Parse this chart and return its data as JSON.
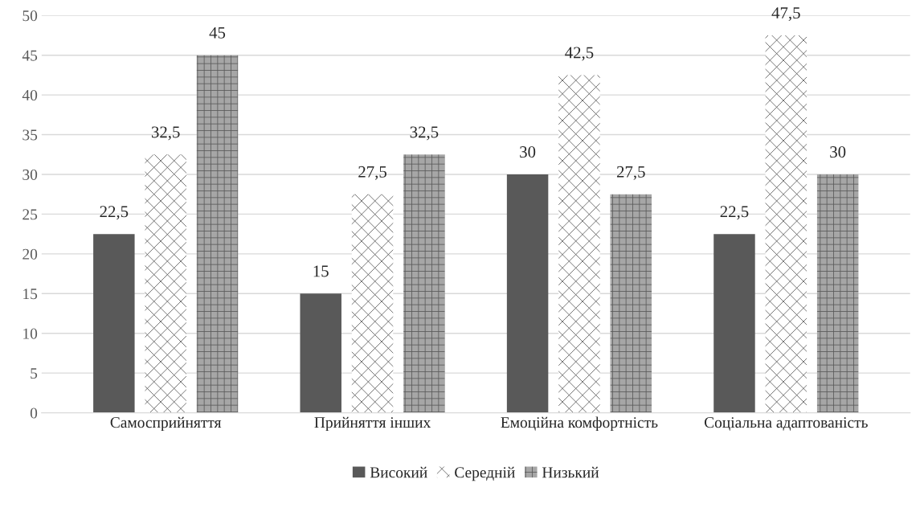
{
  "chart_data": {
    "type": "bar",
    "categories": [
      "Самосприйняття",
      "Прийняття інших",
      "Емоційна комфортність",
      "Соціальна адаптованість"
    ],
    "series": [
      {
        "name": "Високий",
        "color": "#595959",
        "values": [
          22.5,
          15,
          30,
          22.5
        ],
        "value_labels": [
          "22,5",
          "15",
          "30",
          "22,5"
        ]
      },
      {
        "name": "Середній",
        "color": "#ffffff",
        "values": [
          32.5,
          27.5,
          42.5,
          47.5
        ],
        "value_labels": [
          "32,5",
          "27,5",
          "42,5",
          "47,5"
        ]
      },
      {
        "name": "Низький",
        "color": "#a6a6a6",
        "values": [
          45,
          32.5,
          27.5,
          30
        ],
        "value_labels": [
          "45",
          "32,5",
          "27,5",
          "30"
        ]
      }
    ],
    "ylim": [
      0,
      50
    ],
    "yticks": [
      0,
      5,
      10,
      15,
      20,
      25,
      30,
      35,
      40,
      45,
      50
    ],
    "grid": "y",
    "legend": "bottom"
  }
}
